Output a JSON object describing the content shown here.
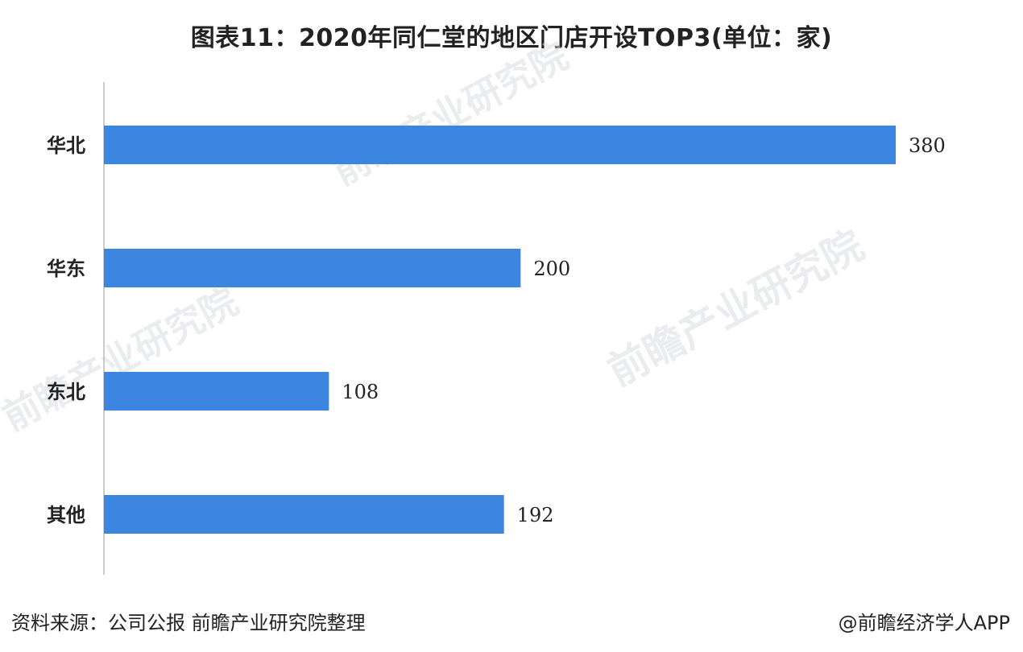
{
  "title": "图表11：2020年同仁堂的地区门店开设TOP3(单位：家)",
  "watermark": "前瞻产业研究院",
  "footer": {
    "source": "资料来源：公司公报 前瞻产业研究院整理",
    "credit": "@前瞻经济学人APP"
  },
  "colors": {
    "bar": "#3d86e0",
    "axis": "#bbbbbb",
    "text": "#222222"
  },
  "chart_data": {
    "type": "bar",
    "orientation": "horizontal",
    "title": "图表11：2020年同仁堂的地区门店开设TOP3(单位：家)",
    "categories": [
      "华北",
      "华东",
      "东北",
      "其他"
    ],
    "values": [
      380,
      200,
      108,
      192
    ],
    "xlim": [
      0,
      380
    ],
    "grid": false,
    "legend": "none",
    "data_labels": true
  }
}
